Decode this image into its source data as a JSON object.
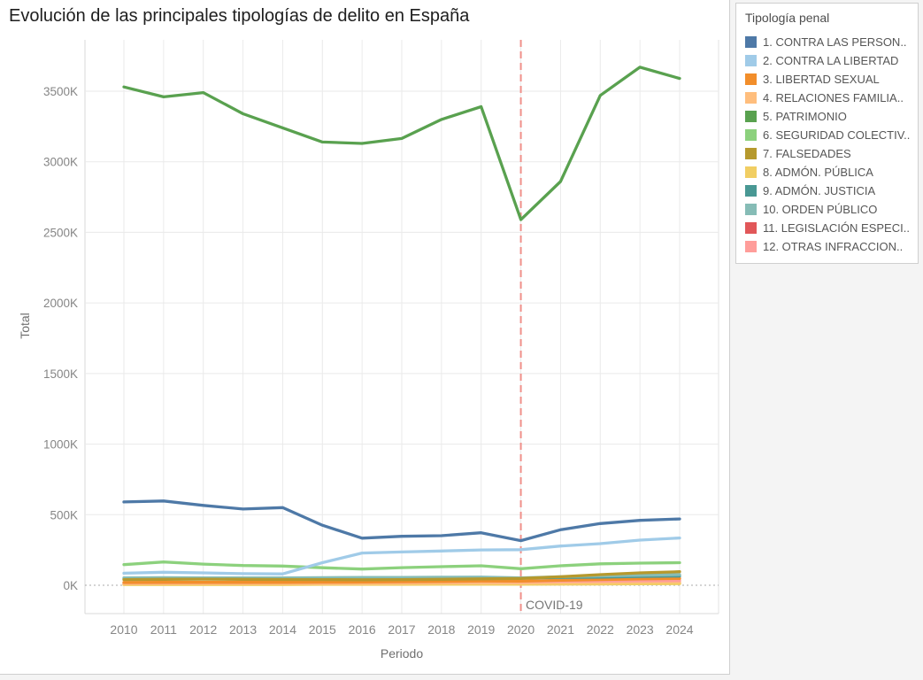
{
  "title": "Evolución de las principales tipologías de delito en España",
  "legend": {
    "title": "Tipología penal",
    "items": [
      {
        "label": "1. CONTRA LAS PERSON..",
        "color": "#4e79a7"
      },
      {
        "label": "2. CONTRA LA LIBERTAD",
        "color": "#a0cbe8"
      },
      {
        "label": "3. LIBERTAD SEXUAL",
        "color": "#f28e2b"
      },
      {
        "label": "4. RELACIONES FAMILIA..",
        "color": "#ffbe7d"
      },
      {
        "label": "5. PATRIMONIO",
        "color": "#59a14f"
      },
      {
        "label": "6. SEGURIDAD COLECTIV..",
        "color": "#8cd17d"
      },
      {
        "label": "7. FALSEDADES",
        "color": "#b6992d"
      },
      {
        "label": "8. ADMÓN. PÚBLICA",
        "color": "#f1ce63"
      },
      {
        "label": "9. ADMÓN. JUSTICIA",
        "color": "#499894"
      },
      {
        "label": "10. ORDEN PÚBLICO",
        "color": "#86bcb6"
      },
      {
        "label": "11. LEGISLACIÓN ESPECI..",
        "color": "#e15759"
      },
      {
        "label": "12. OTRAS INFRACCION..",
        "color": "#ff9d9a"
      }
    ]
  },
  "chart_data": {
    "type": "line",
    "title": "Evolución de las principales tipologías de delito en España",
    "xlabel": "Periodo",
    "ylabel": "Total",
    "y_unit": "K",
    "x": [
      2010,
      2011,
      2012,
      2013,
      2014,
      2015,
      2016,
      2017,
      2018,
      2019,
      2020,
      2021,
      2022,
      2023,
      2024
    ],
    "yticks": [
      {
        "v": 0,
        "label": "0K"
      },
      {
        "v": 500,
        "label": "500K"
      },
      {
        "v": 1000,
        "label": "1000K"
      },
      {
        "v": 1500,
        "label": "1500K"
      },
      {
        "v": 2000,
        "label": "2000K"
      },
      {
        "v": 2500,
        "label": "2500K"
      },
      {
        "v": 3000,
        "label": "3000K"
      },
      {
        "v": 3500,
        "label": "3500K"
      }
    ],
    "ylim": [
      0,
      3865
    ],
    "grid": true,
    "legend_position": "right",
    "annotation": {
      "label": "COVID-19",
      "x": 2020,
      "style": "dashed-vertical",
      "color": "#f0908a"
    },
    "series": [
      {
        "name": "1. CONTRA LAS PERSON..",
        "color": "#4e79a7",
        "values": [
          590,
          597,
          566,
          540,
          550,
          425,
          334,
          347,
          351,
          372,
          316,
          393,
          437,
          460,
          470
        ]
      },
      {
        "name": "2. CONTRA LA LIBERTAD",
        "color": "#a0cbe8",
        "values": [
          85,
          92,
          88,
          82,
          80,
          160,
          228,
          236,
          243,
          250,
          252,
          278,
          295,
          320,
          335
        ]
      },
      {
        "name": "3. LIBERTAD SEXUAL",
        "color": "#f28e2b",
        "values": [
          20,
          21,
          21,
          21,
          21,
          22,
          23,
          25,
          27,
          30,
          29,
          35,
          40,
          45,
          48
        ]
      },
      {
        "name": "4. RELACIONES FAMILIA..",
        "color": "#ffbe7d",
        "values": [
          12,
          13,
          13,
          13,
          13,
          14,
          14,
          15,
          16,
          17,
          16,
          19,
          21,
          23,
          25
        ]
      },
      {
        "name": "5. PATRIMONIO",
        "color": "#59a14f",
        "values": [
          3530,
          3460,
          3490,
          3340,
          3240,
          3140,
          3130,
          3165,
          3300,
          3390,
          2590,
          2860,
          3470,
          3670,
          3590
        ]
      },
      {
        "name": "6. SEGURIDAD COLECTIV..",
        "color": "#8cd17d",
        "values": [
          146,
          165,
          150,
          140,
          136,
          124,
          115,
          125,
          132,
          138,
          117,
          138,
          152,
          157,
          160
        ]
      },
      {
        "name": "7. FALSEDADES",
        "color": "#b6992d",
        "values": [
          40,
          42,
          43,
          42,
          41,
          40,
          39,
          40,
          42,
          45,
          48,
          60,
          75,
          88,
          96
        ]
      },
      {
        "name": "8. ADMÓN. PÚBLICA",
        "color": "#f1ce63",
        "values": [
          5,
          5,
          5,
          5,
          5,
          6,
          6,
          6,
          7,
          7,
          7,
          8,
          9,
          10,
          11
        ]
      },
      {
        "name": "9. ADMÓN. JUSTICIA",
        "color": "#499894",
        "values": [
          45,
          47,
          48,
          48,
          49,
          50,
          50,
          51,
          52,
          54,
          50,
          55,
          58,
          62,
          65
        ]
      },
      {
        "name": "10. ORDEN PÚBLICO",
        "color": "#86bcb6",
        "values": [
          52,
          54,
          53,
          52,
          53,
          54,
          55,
          56,
          57,
          58,
          52,
          60,
          66,
          71,
          75
        ]
      },
      {
        "name": "11. LEGISLACIÓN ESPECI..",
        "color": "#e15759",
        "values": [
          8,
          8,
          8,
          8,
          8,
          9,
          9,
          9,
          10,
          10,
          10,
          11,
          12,
          13,
          14
        ]
      },
      {
        "name": "12. OTRAS INFRACCION..",
        "color": "#ff9d9a",
        "values": [
          18,
          18,
          19,
          19,
          20,
          21,
          22,
          24,
          26,
          28,
          27,
          29,
          31,
          32,
          33
        ]
      }
    ]
  }
}
